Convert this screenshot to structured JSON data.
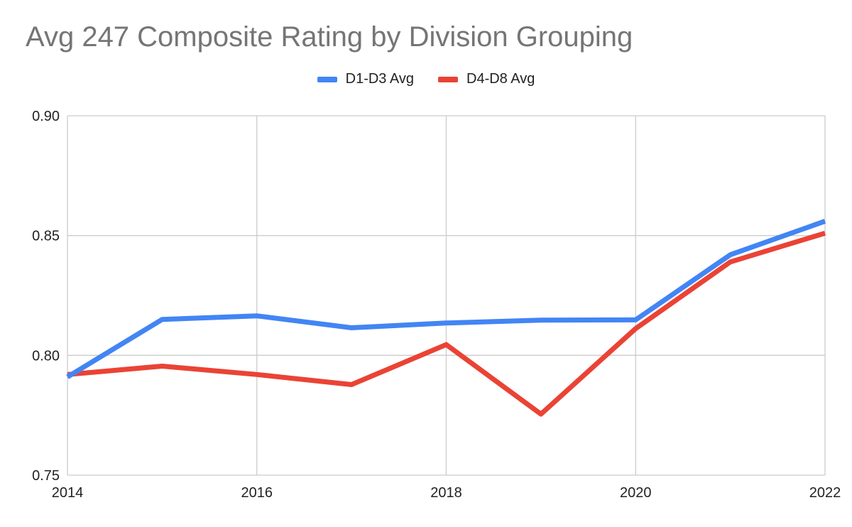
{
  "chart_data": {
    "type": "line",
    "title": "Avg 247 Composite Rating by Division Grouping",
    "xlabel": "",
    "ylabel": "",
    "x": [
      2014,
      2015,
      2016,
      2017,
      2018,
      2019,
      2020,
      2021,
      2022
    ],
    "x_ticks": [
      "2014",
      "2016",
      "2018",
      "2020",
      "2022"
    ],
    "y_ticks": [
      "0.90",
      "0.85",
      "0.80",
      "0.75"
    ],
    "xlim": [
      2014,
      2022
    ],
    "ylim": [
      0.75,
      0.9
    ],
    "grid": true,
    "legend_position": "top",
    "series": [
      {
        "name": "D1-D3 Avg",
        "color": "#4285f4",
        "values": [
          0.791,
          0.815,
          0.8165,
          0.8115,
          0.8135,
          0.8147,
          0.8148,
          0.842,
          0.856
        ]
      },
      {
        "name": "D4-D8 Avg",
        "color": "#ea4335",
        "values": [
          0.792,
          0.7955,
          0.792,
          0.7878,
          0.8045,
          0.7755,
          0.8112,
          0.839,
          0.851
        ]
      }
    ]
  }
}
